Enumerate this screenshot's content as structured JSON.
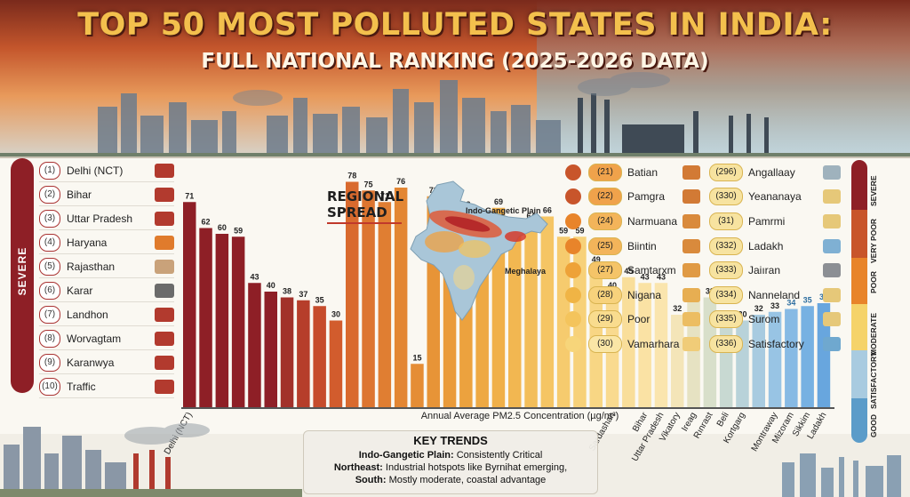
{
  "header": {
    "title": "TOP 50 MOST POLLUTED STATES IN INDIA:",
    "subtitle": "FULL NATIONAL RANKING (2025-2026 DATA)"
  },
  "severity_label": "SEVERE",
  "left_ranking": [
    {
      "rank": "(1)",
      "name": "Delhi (NCT)"
    },
    {
      "rank": "(2)",
      "name": "Bihar"
    },
    {
      "rank": "(3)",
      "name": "Uttar Pradesh"
    },
    {
      "rank": "(4)",
      "name": "Haryana"
    },
    {
      "rank": "(5)",
      "name": "Rajasthan"
    },
    {
      "rank": "(6)",
      "name": "Karar"
    },
    {
      "rank": "(7)",
      "name": "Landhon"
    },
    {
      "rank": "(8)",
      "name": "Worvagtam"
    },
    {
      "rank": "(9)",
      "name": "Karanwya"
    },
    {
      "rank": "(10)",
      "name": "Traffic"
    }
  ],
  "regional": {
    "title_line1": "REGIONAL",
    "title_line2": "SPREAD",
    "label_igp": "Indo-Gangetic Plain",
    "label_meghalaya": "Meghalaya"
  },
  "mid_ranking": [
    {
      "rank": "(21)",
      "name": "Batian",
      "color": "#c8552b"
    },
    {
      "rank": "(22)",
      "name": "Pamgra",
      "color": "#c8552b"
    },
    {
      "rank": "(24)",
      "name": "Narmuana",
      "color": "#e8842a"
    },
    {
      "rank": "(25)",
      "name": "Biintin",
      "color": "#e8842a"
    },
    {
      "rank": "(27)",
      "name": "Samtarxm",
      "color": "#eea238"
    },
    {
      "rank": "(28)",
      "name": "Nigana",
      "color": "#f0b445"
    },
    {
      "rank": "(29)",
      "name": "Poor",
      "color": "#f4c45c"
    },
    {
      "rank": "(30)",
      "name": "Vamarhara",
      "color": "#f7d57a"
    }
  ],
  "right_ranking": [
    {
      "rank": "(296)",
      "name": "Angallaay"
    },
    {
      "rank": "(330)",
      "name": "Yeananaya"
    },
    {
      "rank": "(31)",
      "name": "Pamrmi"
    },
    {
      "rank": "(332)",
      "name": "Ladakh"
    },
    {
      "rank": "(333)",
      "name": "Jaiıran"
    },
    {
      "rank": "(334)",
      "name": "Nanneland"
    },
    {
      "rank": "(335)",
      "name": "Surom"
    },
    {
      "rank": "(336)",
      "name": "Satisfactory"
    }
  ],
  "scale_labels": [
    "SEVERE",
    "VERY POOR",
    "POOR",
    "MODERATE",
    "SATISFACTORY",
    "GOOD"
  ],
  "colors": {
    "severe": "#8e1f26",
    "very_poor": "#c8552b",
    "poor": "#e8842a",
    "moderate": "#f5d36a",
    "satisfactory": "#a9cbe0",
    "good": "#5b9cc9"
  },
  "chart_data": {
    "type": "bar",
    "title": "",
    "xlabel": "",
    "ylabel": "",
    "caption": "Annual Average PM2.5 Concentration (µg/m³)",
    "values": [
      71,
      62,
      60,
      59,
      43,
      40,
      38,
      37,
      35,
      30,
      78,
      75,
      71,
      76,
      15,
      73,
      61,
      68,
      65,
      69,
      60,
      64,
      66,
      59,
      59,
      49,
      40,
      45,
      43,
      43,
      32,
      37,
      38,
      29,
      30,
      32,
      33,
      34,
      35,
      36
    ],
    "bar_colors": [
      "#8e1f26",
      "#8e1f26",
      "#8e1f26",
      "#8e1f26",
      "#8e1f26",
      "#8e1f26",
      "#a2312a",
      "#b63e2b",
      "#c64c2c",
      "#d25c2d",
      "#d96a2e",
      "#dd7530",
      "#e07e32",
      "#e38633",
      "#e58d35",
      "#e79437",
      "#ea9b3a",
      "#eca23e",
      "#eea943",
      "#f0b049",
      "#f2b751",
      "#f3be5a",
      "#f5c564",
      "#f6cb6e",
      "#f7d179",
      "#f8d684",
      "#f9da8f",
      "#f9de9a",
      "#fae2a4",
      "#fae5ae",
      "#f4e5b8",
      "#e6e2c2",
      "#d8dfca",
      "#c8d9d2",
      "#b8d2d9",
      "#a8cbe0",
      "#98c4e4",
      "#87bae4",
      "#77b1e2",
      "#68a6de"
    ],
    "x_labels": [
      "Delhi (NCT)",
      "Sardashan",
      "Bihar",
      "Uttar Pradesh",
      "Vikatory",
      "Ireag",
      "Rınrast",
      "Beli",
      "Kortgarg",
      "Montraway",
      "Mizoram",
      "Sikkim",
      "Ladakh"
    ],
    "x_label_bar_index": [
      0,
      26,
      28,
      29,
      30,
      31,
      32,
      33,
      34,
      36,
      37,
      38,
      39
    ],
    "ylim": [
      0,
      80
    ]
  },
  "key_trends": {
    "title": "KEY TRENDS",
    "line1_bold": "Indo-Gangetic Plain:",
    "line1_text": " Consistently Critical",
    "line2_bold": "Northeast:",
    "line2_text": " Industrial hotspots like Byrnihat emerging,",
    "line3_bold": "South:",
    "line3_text": " Mostly moderate, coastal advantage"
  }
}
